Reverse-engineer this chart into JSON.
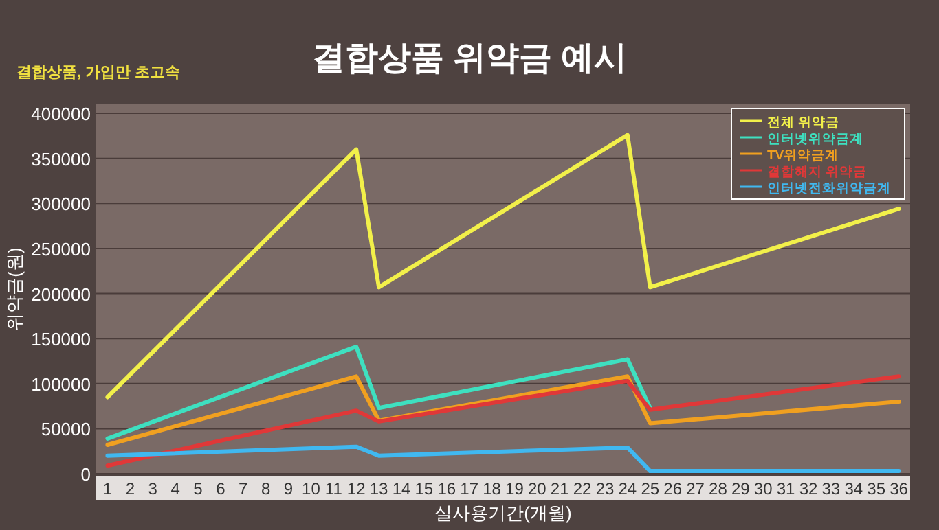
{
  "chart_data": {
    "type": "line",
    "title": "결합상품 위약금 예시",
    "annotations": [
      "결합상품, 가입만 초고속"
    ],
    "xlabel": "실사용기간(개월)",
    "ylabel": "위약금(원)",
    "xlim": [
      0.5,
      36.5
    ],
    "xticks": [
      1,
      2,
      3,
      4,
      5,
      6,
      7,
      8,
      9,
      10,
      11,
      12,
      13,
      14,
      15,
      16,
      17,
      18,
      19,
      20,
      21,
      22,
      23,
      24,
      25,
      26,
      27,
      28,
      29,
      30,
      31,
      32,
      33,
      34,
      35,
      36
    ],
    "ylim": [
      0,
      410000
    ],
    "yticks": [
      0,
      50000,
      100000,
      150000,
      200000,
      250000,
      300000,
      350000,
      400000
    ],
    "grid": "y",
    "legend": "top right",
    "series": [
      {
        "name": "전체 위약금",
        "color": "#f2f04a",
        "x": [
          1,
          12,
          13,
          24,
          25,
          36
        ],
        "values": [
          85000,
          360000,
          207000,
          376000,
          207000,
          294000
        ]
      },
      {
        "name": "인터넷위약금계",
        "color": "#3ee0c0",
        "x": [
          1,
          12,
          13,
          24,
          25
        ],
        "values": [
          39000,
          141000,
          73000,
          127000,
          73000
        ]
      },
      {
        "name": "TV위약금계",
        "color": "#f0a020",
        "x": [
          1,
          12,
          13,
          24,
          25,
          36
        ],
        "values": [
          32000,
          108000,
          59000,
          108000,
          56000,
          80000
        ]
      },
      {
        "name": "결합해지 위약금",
        "color": "#e03838",
        "x": [
          1,
          12,
          13,
          24,
          25,
          36
        ],
        "values": [
          9000,
          70000,
          58000,
          103000,
          71000,
          108000
        ]
      },
      {
        "name": "인터넷전화위약금계",
        "color": "#40b8f0",
        "x": [
          1,
          12,
          13,
          24,
          25,
          36
        ],
        "values": [
          20000,
          30000,
          20000,
          29000,
          3000,
          3000
        ]
      }
    ]
  }
}
